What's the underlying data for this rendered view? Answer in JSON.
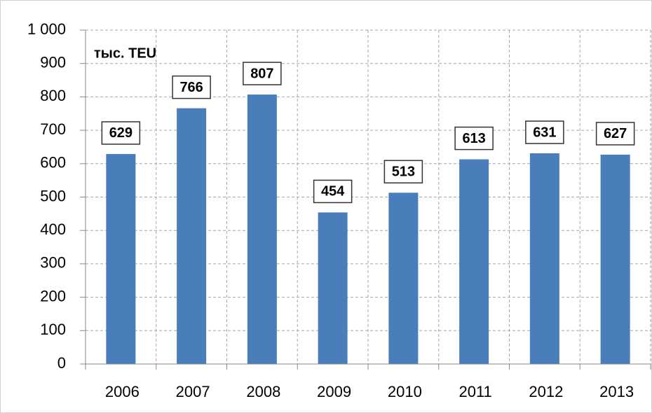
{
  "chart_data": {
    "type": "bar",
    "y_label": "тыс. TEU",
    "categories": [
      "2006",
      "2007",
      "2008",
      "2009",
      "2010",
      "2011",
      "2012",
      "2013"
    ],
    "values": [
      629,
      766,
      807,
      454,
      513,
      613,
      631,
      627
    ],
    "color": "#4a7ebb",
    "ylim": [
      0,
      1000
    ],
    "yticks": [
      0,
      100,
      200,
      300,
      400,
      500,
      600,
      700,
      800,
      900,
      {
        "value": 1000,
        "label": "1 000"
      }
    ],
    "grid": true
  }
}
